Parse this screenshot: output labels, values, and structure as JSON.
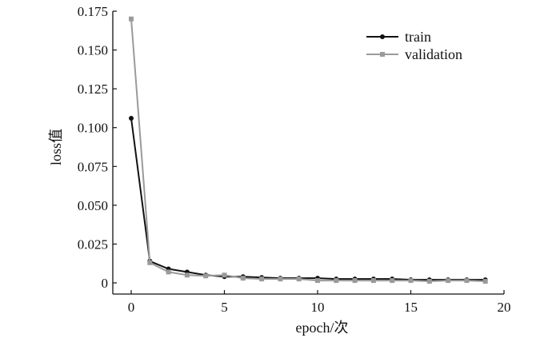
{
  "chart_data": {
    "type": "line",
    "title": "",
    "xlabel": "epoch/次",
    "ylabel": "loss值",
    "xlim": [
      -1,
      20
    ],
    "ylim": [
      -0.003,
      0.175
    ],
    "xticks": [
      0,
      5,
      10,
      15,
      20
    ],
    "xtick_labels": [
      "0",
      "5",
      "10",
      "15",
      "20"
    ],
    "yticks": [
      0,
      0.025,
      0.05,
      0.075,
      0.1,
      0.125,
      0.15,
      0.175
    ],
    "ytick_labels": [
      "0",
      "0.025",
      "0.050",
      "0.075",
      "0.100",
      "0.125",
      "0.150",
      "0.175"
    ],
    "grid": false,
    "legend_position": "top-right",
    "x": [
      0,
      1,
      2,
      3,
      4,
      5,
      6,
      7,
      8,
      9,
      10,
      11,
      12,
      13,
      14,
      15,
      16,
      17,
      18,
      19
    ],
    "series": [
      {
        "name": "train",
        "color": "#111111",
        "marker": "circle",
        "values": [
          0.106,
          0.014,
          0.009,
          0.007,
          0.005,
          0.004,
          0.004,
          0.0035,
          0.003,
          0.003,
          0.003,
          0.0025,
          0.0025,
          0.0025,
          0.0025,
          0.002,
          0.002,
          0.002,
          0.002,
          0.002
        ]
      },
      {
        "name": "validation",
        "color": "#9a9a9a",
        "marker": "square",
        "values": [
          0.17,
          0.013,
          0.007,
          0.005,
          0.0045,
          0.005,
          0.003,
          0.0025,
          0.0025,
          0.0025,
          0.0015,
          0.0015,
          0.0015,
          0.0015,
          0.0015,
          0.0015,
          0.001,
          0.0015,
          0.0015,
          0.001
        ]
      }
    ]
  }
}
